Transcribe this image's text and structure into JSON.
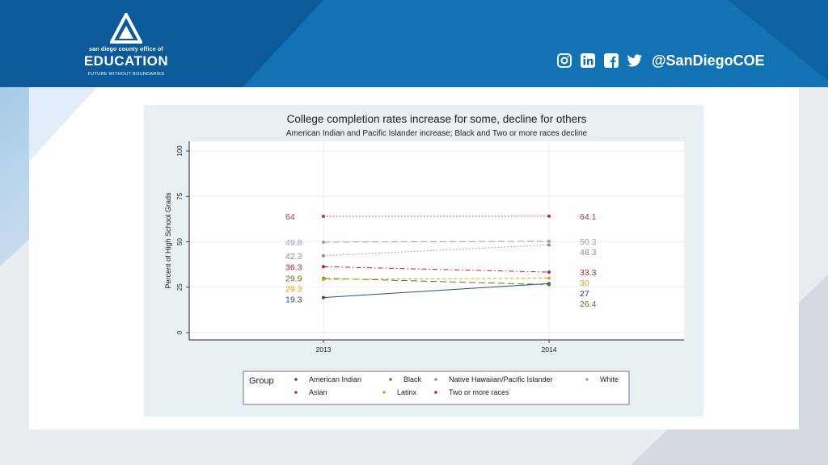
{
  "header": {
    "org_line": "san diego county office of",
    "org_name": "EDUCATION",
    "tagline": "FUTURE WITHOUT BOUNDARIES",
    "social_icons": [
      "instagram-icon",
      "linkedin-icon",
      "facebook-icon",
      "twitter-icon"
    ],
    "handle": "@SanDiegoCOE",
    "colors": {
      "header_blue": "#1272b4",
      "dark_blue": "#0c5a99"
    }
  },
  "chart_data": {
    "type": "line",
    "title": "College completion rates increase for some, decline for others",
    "subtitle": "American Indian and Pacific Islander increase; Black and Two or more races decline",
    "xlabel": "",
    "ylabel": "Percent of High School Grads",
    "categories": [
      "2013",
      "2014"
    ],
    "ylim": [
      0,
      100
    ],
    "yticks": [
      "0",
      "25",
      "50",
      "75",
      "100"
    ],
    "grid": true,
    "legend": {
      "title": "Group",
      "placement": "bottom",
      "order": [
        "American Indian",
        "Black",
        "Native Hawaiian/Pacific Islander",
        "White",
        "Asian",
        "Latinx",
        "Two or more races"
      ]
    },
    "series": [
      {
        "name": "American Indian",
        "values": [
          19.3,
          27
        ],
        "labels": [
          "19.3",
          "27"
        ],
        "color": "#2b4d80",
        "dash": "solid"
      },
      {
        "name": "Black",
        "values": [
          29.9,
          26.4
        ],
        "labels": [
          "29.9",
          "26.4"
        ],
        "color": "#5b7a2a",
        "dash": "longdash"
      },
      {
        "name": "Native Hawaiian/Pacific Islander",
        "values": [
          42.3,
          48.3
        ],
        "labels": [
          "42.3",
          "48.3"
        ],
        "color": "#8a8f92",
        "dash": "dotted"
      },
      {
        "name": "White",
        "values": [
          49.8,
          50.3
        ],
        "labels": [
          "49.8",
          "50.3"
        ],
        "color": "#9e95dc",
        "dash": "longdash"
      },
      {
        "name": "Asian",
        "values": [
          64,
          64.1
        ],
        "labels": [
          "64",
          "64.1"
        ],
        "color": "#a83a3e",
        "dash": "dotted"
      },
      {
        "name": "Latinx",
        "values": [
          29.3,
          30
        ],
        "labels": [
          "29.3",
          "30"
        ],
        "color": "#e3a21a",
        "dash": "dashed"
      },
      {
        "name": "Two or more races",
        "values": [
          36.3,
          33.3
        ],
        "labels": [
          "36.3",
          "33.3"
        ],
        "color": "#cc1540",
        "dash": "dashdot"
      }
    ]
  }
}
